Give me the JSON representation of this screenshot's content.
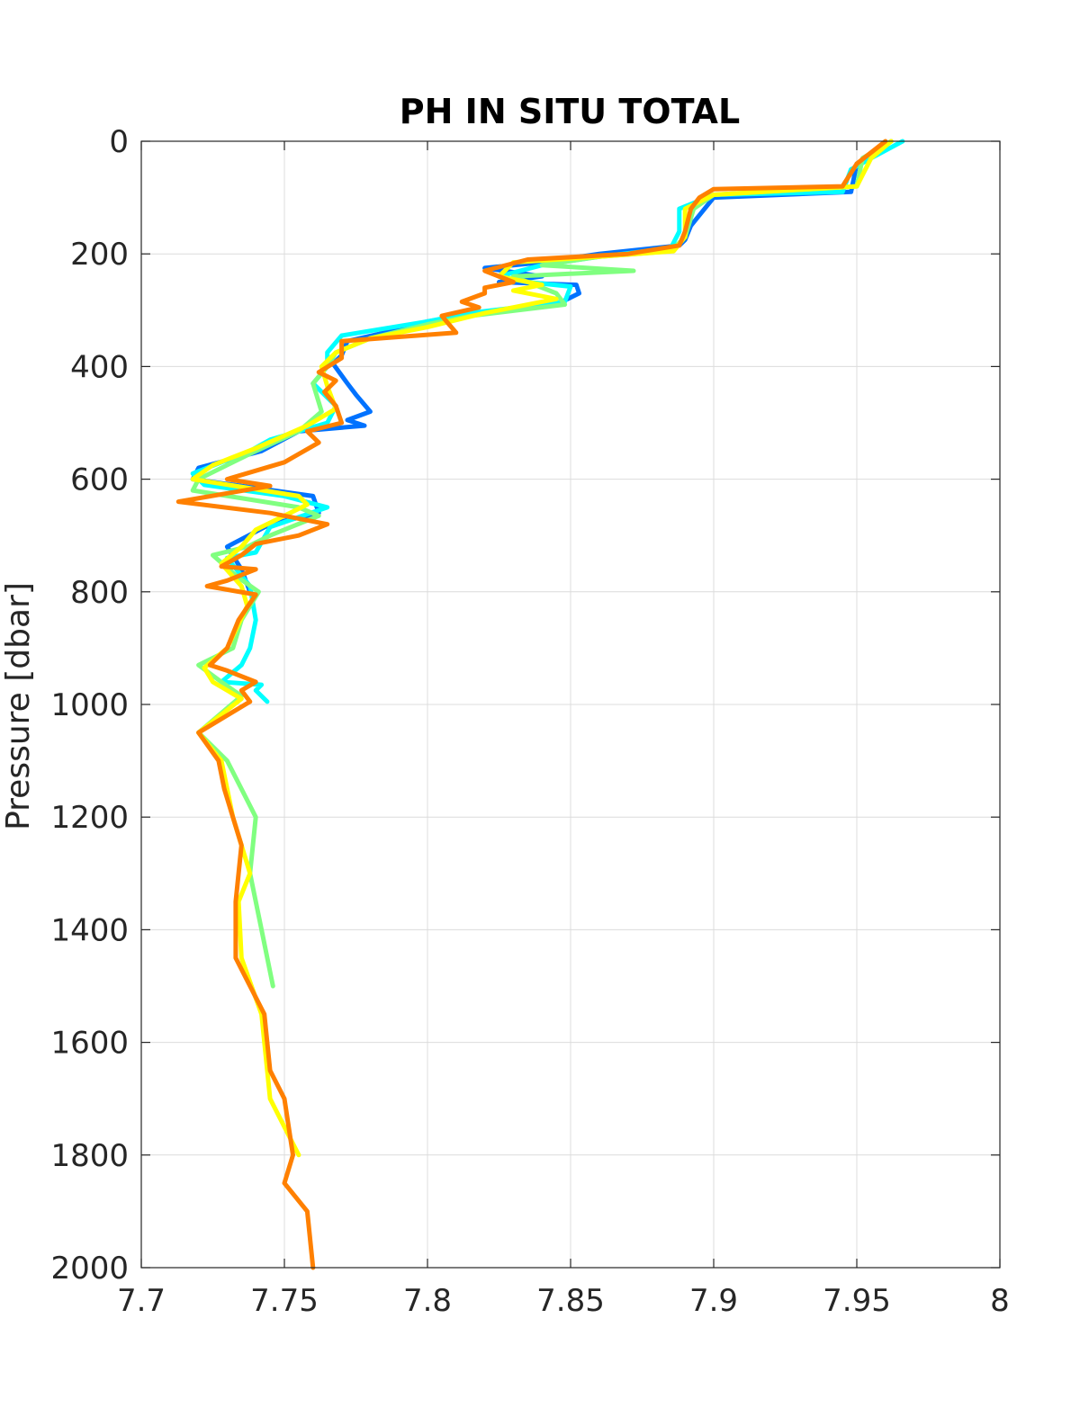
{
  "chart_data": {
    "type": "line",
    "title": "PH IN SITU TOTAL",
    "xlabel": "",
    "ylabel": "Pressure [dbar]",
    "xlim": [
      7.7,
      8.0
    ],
    "ylim": [
      0,
      2000
    ],
    "y_reversed": true,
    "grid": true,
    "x_ticks": [
      "7.7",
      "7.75",
      "7.8",
      "7.85",
      "7.9",
      "7.95",
      "8"
    ],
    "y_ticks": [
      "0",
      "200",
      "400",
      "600",
      "800",
      "1000",
      "1200",
      "1400",
      "1600",
      "1800",
      "2000"
    ],
    "x_tick_values": [
      7.7,
      7.75,
      7.8,
      7.85,
      7.9,
      7.95,
      8.0
    ],
    "y_tick_values": [
      0,
      200,
      400,
      600,
      800,
      1000,
      1200,
      1400,
      1600,
      1800,
      2000
    ],
    "series": [
      {
        "color": "#0072ff",
        "points": [
          [
            7.962,
            0
          ],
          [
            7.95,
            40
          ],
          [
            7.948,
            90
          ],
          [
            7.9,
            100
          ],
          [
            7.892,
            150
          ],
          [
            7.89,
            175
          ],
          [
            7.888,
            185
          ],
          [
            7.86,
            200
          ],
          [
            7.84,
            215
          ],
          [
            7.82,
            225
          ],
          [
            7.84,
            240
          ],
          [
            7.825,
            250
          ],
          [
            7.852,
            255
          ],
          [
            7.853,
            270
          ],
          [
            7.845,
            290
          ],
          [
            7.812,
            310
          ],
          [
            7.8,
            320
          ],
          [
            7.785,
            340
          ],
          [
            7.772,
            355
          ],
          [
            7.77,
            380
          ],
          [
            7.767,
            395
          ],
          [
            7.772,
            430
          ],
          [
            7.775,
            450
          ],
          [
            7.78,
            480
          ],
          [
            7.772,
            495
          ],
          [
            7.778,
            505
          ],
          [
            7.755,
            515
          ],
          [
            7.742,
            550
          ],
          [
            7.72,
            580
          ],
          [
            7.718,
            600
          ],
          [
            7.76,
            630
          ],
          [
            7.762,
            660
          ],
          [
            7.745,
            680
          ],
          [
            7.73,
            720
          ],
          [
            7.735,
            760
          ],
          [
            7.738,
            800
          ]
        ]
      },
      {
        "color": "#00ffff",
        "points": [
          [
            7.966,
            0
          ],
          [
            7.955,
            30
          ],
          [
            7.948,
            50
          ],
          [
            7.945,
            90
          ],
          [
            7.9,
            95
          ],
          [
            7.888,
            120
          ],
          [
            7.888,
            160
          ],
          [
            7.885,
            190
          ],
          [
            7.86,
            205
          ],
          [
            7.84,
            220
          ],
          [
            7.825,
            240
          ],
          [
            7.835,
            250
          ],
          [
            7.85,
            258
          ],
          [
            7.848,
            285
          ],
          [
            7.815,
            305
          ],
          [
            7.8,
            320
          ],
          [
            7.77,
            345
          ],
          [
            7.765,
            375
          ],
          [
            7.765,
            400
          ],
          [
            7.76,
            430
          ],
          [
            7.768,
            470
          ],
          [
            7.765,
            500
          ],
          [
            7.745,
            530
          ],
          [
            7.738,
            550
          ],
          [
            7.718,
            590
          ],
          [
            7.722,
            610
          ],
          [
            7.75,
            630
          ],
          [
            7.765,
            650
          ],
          [
            7.745,
            685
          ],
          [
            7.74,
            730
          ],
          [
            7.73,
            740
          ],
          [
            7.738,
            790
          ],
          [
            7.74,
            850
          ],
          [
            7.738,
            900
          ],
          [
            7.735,
            930
          ],
          [
            7.728,
            960
          ],
          [
            7.742,
            965
          ],
          [
            7.74,
            975
          ],
          [
            7.744,
            995
          ]
        ]
      },
      {
        "color": "#80ff80",
        "points": [
          [
            7.962,
            0
          ],
          [
            7.952,
            30
          ],
          [
            7.95,
            80
          ],
          [
            7.9,
            95
          ],
          [
            7.893,
            120
          ],
          [
            7.89,
            170
          ],
          [
            7.885,
            195
          ],
          [
            7.86,
            205
          ],
          [
            7.84,
            220
          ],
          [
            7.872,
            230
          ],
          [
            7.83,
            240
          ],
          [
            7.845,
            270
          ],
          [
            7.848,
            290
          ],
          [
            7.815,
            310
          ],
          [
            7.8,
            325
          ],
          [
            7.78,
            350
          ],
          [
            7.768,
            375
          ],
          [
            7.765,
            400
          ],
          [
            7.76,
            430
          ],
          [
            7.763,
            480
          ],
          [
            7.755,
            515
          ],
          [
            7.738,
            555
          ],
          [
            7.72,
            600
          ],
          [
            7.718,
            620
          ],
          [
            7.755,
            650
          ],
          [
            7.762,
            665
          ],
          [
            7.745,
            700
          ],
          [
            7.737,
            720
          ],
          [
            7.725,
            735
          ],
          [
            7.734,
            775
          ],
          [
            7.741,
            800
          ],
          [
            7.735,
            850
          ],
          [
            7.732,
            900
          ],
          [
            7.72,
            930
          ],
          [
            7.728,
            960
          ],
          [
            7.735,
            985
          ],
          [
            7.72,
            1050
          ],
          [
            7.73,
            1100
          ],
          [
            7.74,
            1200
          ],
          [
            7.738,
            1300
          ],
          [
            7.742,
            1400
          ],
          [
            7.746,
            1500
          ]
        ]
      },
      {
        "color": "#ffff00",
        "points": [
          [
            7.962,
            0
          ],
          [
            7.955,
            30
          ],
          [
            7.95,
            80
          ],
          [
            7.9,
            95
          ],
          [
            7.89,
            120
          ],
          [
            7.89,
            170
          ],
          [
            7.886,
            195
          ],
          [
            7.86,
            205
          ],
          [
            7.83,
            215
          ],
          [
            7.825,
            240
          ],
          [
            7.84,
            255
          ],
          [
            7.83,
            265
          ],
          [
            7.845,
            280
          ],
          [
            7.82,
            305
          ],
          [
            7.8,
            330
          ],
          [
            7.78,
            350
          ],
          [
            7.768,
            375
          ],
          [
            7.763,
            400
          ],
          [
            7.765,
            435
          ],
          [
            7.768,
            475
          ],
          [
            7.758,
            505
          ],
          [
            7.74,
            545
          ],
          [
            7.725,
            575
          ],
          [
            7.718,
            600
          ],
          [
            7.755,
            630
          ],
          [
            7.758,
            645
          ],
          [
            7.74,
            690
          ],
          [
            7.735,
            720
          ],
          [
            7.728,
            750
          ],
          [
            7.735,
            790
          ],
          [
            7.737,
            825
          ],
          [
            7.73,
            900
          ],
          [
            7.722,
            935
          ],
          [
            7.725,
            960
          ],
          [
            7.735,
            990
          ],
          [
            7.72,
            1050
          ],
          [
            7.728,
            1100
          ],
          [
            7.732,
            1200
          ],
          [
            7.738,
            1300
          ],
          [
            7.734,
            1350
          ],
          [
            7.735,
            1450
          ],
          [
            7.742,
            1550
          ],
          [
            7.745,
            1700
          ],
          [
            7.755,
            1800
          ]
        ]
      },
      {
        "color": "#ff8000",
        "points": [
          [
            7.96,
            0
          ],
          [
            7.95,
            40
          ],
          [
            7.945,
            80
          ],
          [
            7.9,
            85
          ],
          [
            7.895,
            100
          ],
          [
            7.892,
            120
          ],
          [
            7.89,
            160
          ],
          [
            7.888,
            185
          ],
          [
            7.87,
            200
          ],
          [
            7.835,
            210
          ],
          [
            7.82,
            230
          ],
          [
            7.83,
            250
          ],
          [
            7.82,
            260
          ],
          [
            7.82,
            270
          ],
          [
            7.812,
            285
          ],
          [
            7.818,
            295
          ],
          [
            7.805,
            310
          ],
          [
            7.81,
            340
          ],
          [
            7.77,
            355
          ],
          [
            7.77,
            385
          ],
          [
            7.762,
            410
          ],
          [
            7.768,
            425
          ],
          [
            7.764,
            445
          ],
          [
            7.768,
            470
          ],
          [
            7.77,
            500
          ],
          [
            7.758,
            515
          ],
          [
            7.762,
            535
          ],
          [
            7.75,
            570
          ],
          [
            7.73,
            600
          ],
          [
            7.745,
            612
          ],
          [
            7.713,
            640
          ],
          [
            7.745,
            660
          ],
          [
            7.765,
            680
          ],
          [
            7.755,
            700
          ],
          [
            7.74,
            715
          ],
          [
            7.735,
            735
          ],
          [
            7.728,
            755
          ],
          [
            7.74,
            760
          ],
          [
            7.73,
            780
          ],
          [
            7.723,
            790
          ],
          [
            7.74,
            805
          ],
          [
            7.738,
            820
          ],
          [
            7.734,
            850
          ],
          [
            7.73,
            900
          ],
          [
            7.724,
            930
          ],
          [
            7.73,
            940
          ],
          [
            7.74,
            960
          ],
          [
            7.735,
            975
          ],
          [
            7.738,
            995
          ],
          [
            7.72,
            1050
          ],
          [
            7.727,
            1100
          ],
          [
            7.729,
            1150
          ],
          [
            7.735,
            1250
          ],
          [
            7.733,
            1350
          ],
          [
            7.733,
            1450
          ],
          [
            7.738,
            1500
          ],
          [
            7.743,
            1550
          ],
          [
            7.745,
            1650
          ],
          [
            7.75,
            1700
          ],
          [
            7.753,
            1800
          ],
          [
            7.75,
            1850
          ],
          [
            7.758,
            1900
          ],
          [
            7.76,
            2000
          ]
        ]
      }
    ]
  }
}
